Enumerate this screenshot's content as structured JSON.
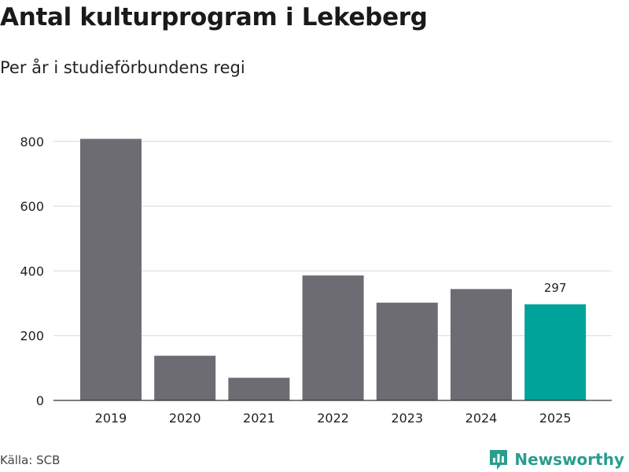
{
  "header": {
    "title": "Antal kulturprogram i Lekeberg",
    "subtitle": "Per år i studieförbundens regi"
  },
  "footer": {
    "source": "Källa: SCB",
    "brand": "Newsworthy"
  },
  "colors": {
    "bar": "#6d6c72",
    "highlight": "#00a399",
    "grid": "#d9d9d9",
    "brand": "#2a9d8f"
  },
  "chart_data": {
    "type": "bar",
    "title": "Antal kulturprogram i Lekeberg",
    "subtitle": "Per år i studieförbundens regi",
    "xlabel": "",
    "ylabel": "",
    "categories": [
      "2019",
      "2020",
      "2021",
      "2022",
      "2023",
      "2024",
      "2025"
    ],
    "values": [
      808,
      138,
      70,
      386,
      302,
      344,
      297
    ],
    "highlight_index": 6,
    "data_labels": [
      {
        "index": 6,
        "text": "297"
      }
    ],
    "ylim": [
      0,
      850
    ],
    "yticks": [
      0,
      200,
      400,
      600,
      800
    ],
    "grid": true
  }
}
